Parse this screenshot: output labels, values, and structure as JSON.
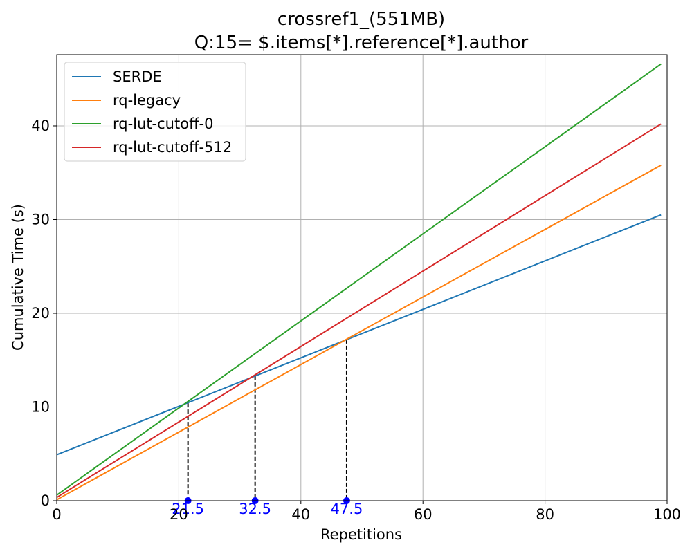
{
  "chart_data": {
    "type": "line",
    "title": "crossref1_(551MB)",
    "subtitle": "Q:15= $.items[*].reference[*].author",
    "xlabel": "Repetitions",
    "ylabel": "Cumulative Time (s)",
    "xlim": [
      0,
      100
    ],
    "ylim": [
      0,
      47.6
    ],
    "xticks": [
      0,
      20,
      40,
      60,
      80,
      100
    ],
    "yticks": [
      0,
      10,
      20,
      30,
      40
    ],
    "grid": true,
    "legend_position": "top-left",
    "series": [
      {
        "name": "SERDE",
        "color": "#1f77b4",
        "x": [
          0,
          99
        ],
        "y": [
          4.9,
          30.5
        ]
      },
      {
        "name": "rq-legacy",
        "color": "#ff7f0e",
        "x": [
          0,
          99
        ],
        "y": [
          0.1,
          35.8
        ]
      },
      {
        "name": "rq-lut-cutoff-0",
        "color": "#2ca02c",
        "x": [
          0,
          99
        ],
        "y": [
          0.6,
          46.6
        ]
      },
      {
        "name": "rq-lut-cutoff-512",
        "color": "#d62728",
        "x": [
          0,
          99
        ],
        "y": [
          0.35,
          40.2
        ]
      }
    ],
    "annotations": [
      {
        "x": 21.5,
        "y": 10.4,
        "label": "21.5"
      },
      {
        "x": 32.5,
        "y": 13.3,
        "label": "32.5"
      },
      {
        "x": 47.5,
        "y": 17.2,
        "label": "47.5"
      }
    ],
    "annotation_color": "#0000ff"
  }
}
